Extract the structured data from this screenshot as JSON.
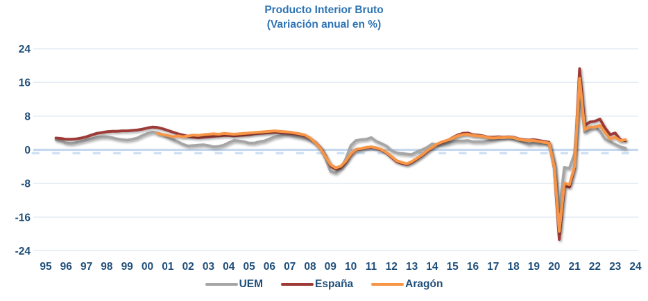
{
  "chart_data": {
    "type": "line",
    "title": "Producto Interior Bruto",
    "subtitle": "(Variación anual en %)",
    "xlabel": "",
    "ylabel": "",
    "ylim": [
      -24,
      24
    ],
    "xlim_years": [
      1995,
      2024
    ],
    "yticks": [
      24,
      16,
      8,
      0,
      -8,
      -16,
      -24
    ],
    "x_tick_labels": [
      "95",
      "96",
      "97",
      "98",
      "99",
      "00",
      "01",
      "02",
      "03",
      "04",
      "05",
      "06",
      "07",
      "08",
      "09",
      "10",
      "11",
      "12",
      "13",
      "14",
      "15",
      "16",
      "17",
      "18",
      "19",
      "20",
      "21",
      "22",
      "23",
      "24"
    ],
    "grid": "horizontal",
    "legend_position": "bottom",
    "frequency": "quarterly",
    "palette": {
      "title": "#2E74B5",
      "label": "#1F4E79",
      "grid": "#DCE6F2",
      "zero_axis": "#C6D8EE",
      "tick_dash": "#CFE0F3",
      "background": "#FFFFFF"
    },
    "series": [
      {
        "name": "UEM",
        "color": "#A6A6A6",
        "start_year": 1995.5,
        "step_years": 0.25,
        "values": [
          2.4,
          2.1,
          1.6,
          1.5,
          1.7,
          2.0,
          2.3,
          2.6,
          2.9,
          3.1,
          3.1,
          2.9,
          2.6,
          2.4,
          2.3,
          2.5,
          2.8,
          3.4,
          3.9,
          4.2,
          4.0,
          3.6,
          3.0,
          2.4,
          1.9,
          1.3,
          0.9,
          1.0,
          1.1,
          1.2,
          1.0,
          0.7,
          0.8,
          1.1,
          1.7,
          2.2,
          2.1,
          1.9,
          1.6,
          1.6,
          1.9,
          2.1,
          2.6,
          3.1,
          3.3,
          3.6,
          3.5,
          3.2,
          3.0,
          2.7,
          2.3,
          1.6,
          0.5,
          -1.9,
          -5.1,
          -5.5,
          -4.4,
          -2.2,
          1.0,
          2.2,
          2.4,
          2.5,
          2.9,
          2.0,
          1.5,
          0.9,
          -0.2,
          -0.7,
          -0.9,
          -1.0,
          -1.1,
          -0.5,
          0.0,
          0.6,
          1.4,
          1.2,
          1.3,
          1.5,
          1.9,
          2.1,
          2.1,
          2.2,
          1.9,
          1.9,
          1.9,
          2.1,
          2.3,
          2.6,
          2.9,
          3.0,
          2.6,
          2.3,
          1.8,
          1.3,
          1.6,
          1.4,
          1.5,
          1.2,
          -3.2,
          -14.6,
          -4.2,
          -4.4,
          -0.9,
          14.6,
          4.2,
          4.9,
          5.5,
          4.4,
          2.6,
          1.9,
          1.3,
          0.7,
          0.4
        ]
      },
      {
        "name": "España",
        "color": "#9D3B38",
        "start_year": 1995.5,
        "step_years": 0.25,
        "values": [
          2.8,
          2.7,
          2.5,
          2.5,
          2.6,
          2.8,
          3.1,
          3.5,
          3.9,
          4.1,
          4.3,
          4.4,
          4.4,
          4.5,
          4.5,
          4.6,
          4.7,
          4.9,
          5.2,
          5.4,
          5.3,
          5.0,
          4.6,
          4.2,
          3.8,
          3.5,
          3.2,
          3.0,
          2.9,
          3.0,
          3.1,
          3.2,
          3.3,
          3.4,
          3.4,
          3.3,
          3.4,
          3.5,
          3.6,
          3.8,
          3.9,
          4.0,
          4.1,
          4.2,
          4.1,
          4.0,
          3.9,
          3.8,
          3.6,
          3.3,
          2.7,
          1.8,
          0.5,
          -1.4,
          -3.8,
          -4.6,
          -4.2,
          -3.0,
          -1.2,
          0.0,
          0.2,
          0.5,
          0.6,
          0.4,
          0.0,
          -0.7,
          -1.8,
          -2.8,
          -3.2,
          -3.5,
          -3.0,
          -2.2,
          -1.4,
          -0.4,
          0.5,
          1.3,
          1.8,
          2.2,
          2.9,
          3.5,
          3.9,
          4.0,
          3.6,
          3.5,
          3.3,
          3.0,
          3.0,
          3.1,
          3.0,
          3.1,
          3.0,
          2.6,
          2.4,
          2.3,
          2.4,
          2.2,
          2.0,
          1.8,
          -4.3,
          -21.3,
          -8.6,
          -8.9,
          -4.3,
          19.3,
          5.8,
          6.6,
          6.8,
          7.3,
          5.2,
          3.6,
          4.0,
          2.4,
          2.2
        ]
      },
      {
        "name": "Aragón",
        "color": "#F79646",
        "start_year": 2000.5,
        "step_years": 0.25,
        "values": [
          3.9,
          3.6,
          3.4,
          3.1,
          3.3,
          3.1,
          3.3,
          3.5,
          3.4,
          3.6,
          3.7,
          3.8,
          3.7,
          3.9,
          3.8,
          3.7,
          3.8,
          3.9,
          4.0,
          4.1,
          4.2,
          4.3,
          4.4,
          4.5,
          4.4,
          4.3,
          4.2,
          4.0,
          3.8,
          3.5,
          2.8,
          1.7,
          0.4,
          -1.6,
          -3.5,
          -4.3,
          -3.9,
          -2.7,
          -1.0,
          0.1,
          0.3,
          0.6,
          0.7,
          0.5,
          0.1,
          -0.6,
          -1.6,
          -2.6,
          -3.0,
          -3.3,
          -2.8,
          -2.0,
          -1.2,
          -0.2,
          0.6,
          1.4,
          1.9,
          2.3,
          2.8,
          3.3,
          3.6,
          3.7,
          3.4,
          3.3,
          3.2,
          2.9,
          2.8,
          2.9,
          2.9,
          3.0,
          2.9,
          2.5,
          2.3,
          2.2,
          2.2,
          2.0,
          1.8,
          1.6,
          -4.0,
          -19.4,
          -7.9,
          -8.3,
          -4.0,
          17.0,
          4.8,
          5.4,
          5.4,
          5.8,
          4.2,
          2.6,
          3.0,
          2.2,
          2.4
        ]
      }
    ]
  }
}
